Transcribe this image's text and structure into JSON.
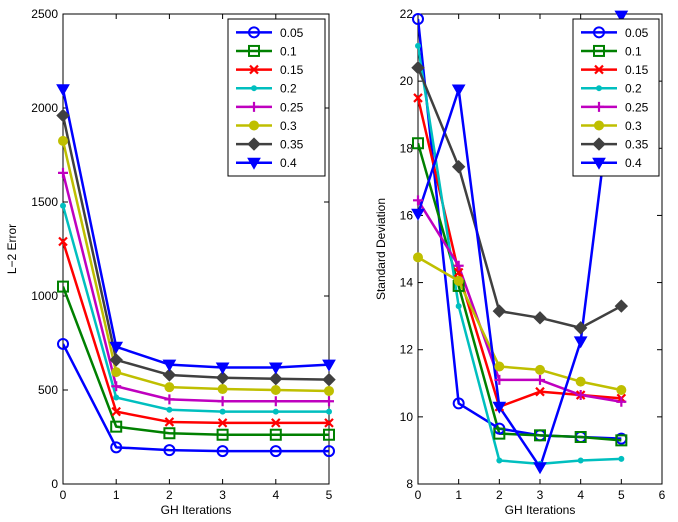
{
  "chart_data": [
    {
      "type": "line",
      "title": "",
      "xlabel": "GH Iterations",
      "ylabel": "L−2 Error",
      "xlim": [
        0,
        5
      ],
      "ylim": [
        0,
        2500
      ],
      "xticks": [
        "0",
        "1",
        "2",
        "3",
        "4",
        "5"
      ],
      "yticks": [
        "0",
        "500",
        "1000",
        "1500",
        "2000",
        "2500"
      ],
      "grid": false,
      "legend_position": "top-right",
      "x": [
        0,
        1,
        2,
        3,
        4,
        5
      ],
      "series": [
        {
          "name": "0.05",
          "color": "#0000ff",
          "marker": "circle",
          "values": [
            745,
            195,
            180,
            175,
            175,
            175
          ]
        },
        {
          "name": "0.1",
          "color": "#008000",
          "marker": "square",
          "values": [
            1050,
            305,
            270,
            262,
            262,
            262
          ]
        },
        {
          "name": "0.15",
          "color": "#ff0000",
          "marker": "x",
          "values": [
            1290,
            385,
            330,
            325,
            325,
            325
          ]
        },
        {
          "name": "0.2",
          "color": "#00bfbf",
          "marker": "dot",
          "values": [
            1480,
            460,
            395,
            385,
            385,
            385
          ]
        },
        {
          "name": "0.25",
          "color": "#bf00bf",
          "marker": "plus",
          "values": [
            1655,
            520,
            450,
            440,
            440,
            440
          ]
        },
        {
          "name": "0.3",
          "color": "#bfbf00",
          "marker": "circle-filled",
          "values": [
            1825,
            595,
            515,
            505,
            500,
            495
          ]
        },
        {
          "name": "0.35",
          "color": "#404040",
          "marker": "diamond",
          "values": [
            1960,
            660,
            580,
            565,
            560,
            555
          ]
        },
        {
          "name": "0.4",
          "color": "#0000ff",
          "marker": "triangle-down",
          "values": [
            2100,
            730,
            635,
            620,
            620,
            635
          ]
        }
      ]
    },
    {
      "type": "line",
      "title": "",
      "xlabel": "GH Iterations",
      "ylabel": "Standard Deviation",
      "xlim": [
        0,
        6
      ],
      "ylim": [
        8,
        22
      ],
      "xticks": [
        "0",
        "1",
        "2",
        "3",
        "4",
        "5",
        "6"
      ],
      "yticks": [
        "8",
        "10",
        "12",
        "14",
        "16",
        "18",
        "20",
        "22"
      ],
      "grid": false,
      "legend_position": "top-right",
      "x": [
        0,
        1,
        2,
        3,
        4,
        5
      ],
      "series": [
        {
          "name": "0.05",
          "color": "#0000ff",
          "marker": "circle",
          "values": [
            21.85,
            10.4,
            9.65,
            9.45,
            9.4,
            9.35
          ]
        },
        {
          "name": "0.1",
          "color": "#008000",
          "marker": "square",
          "values": [
            18.15,
            13.9,
            9.5,
            9.45,
            9.4,
            9.3
          ]
        },
        {
          "name": "0.15",
          "color": "#ff0000",
          "marker": "x",
          "values": [
            19.5,
            14.3,
            10.3,
            10.75,
            10.65,
            10.55
          ]
        },
        {
          "name": "0.2",
          "color": "#00bfbf",
          "marker": "dot",
          "values": [
            21.05,
            13.3,
            8.7,
            8.6,
            8.7,
            8.75
          ]
        },
        {
          "name": "0.25",
          "color": "#bf00bf",
          "marker": "plus",
          "values": [
            16.45,
            14.5,
            11.1,
            11.1,
            10.65,
            10.45
          ]
        },
        {
          "name": "0.3",
          "color": "#bfbf00",
          "marker": "circle-filled",
          "values": [
            14.75,
            14.05,
            11.5,
            11.4,
            11.05,
            10.8
          ]
        },
        {
          "name": "0.35",
          "color": "#404040",
          "marker": "diamond",
          "values": [
            20.4,
            17.45,
            13.15,
            12.95,
            12.65,
            13.3
          ]
        },
        {
          "name": "0.4",
          "color": "#0000ff",
          "marker": "triangle-down",
          "values": [
            16.05,
            19.75,
            10.3,
            8.5,
            12.25,
            21.95
          ]
        }
      ]
    }
  ]
}
